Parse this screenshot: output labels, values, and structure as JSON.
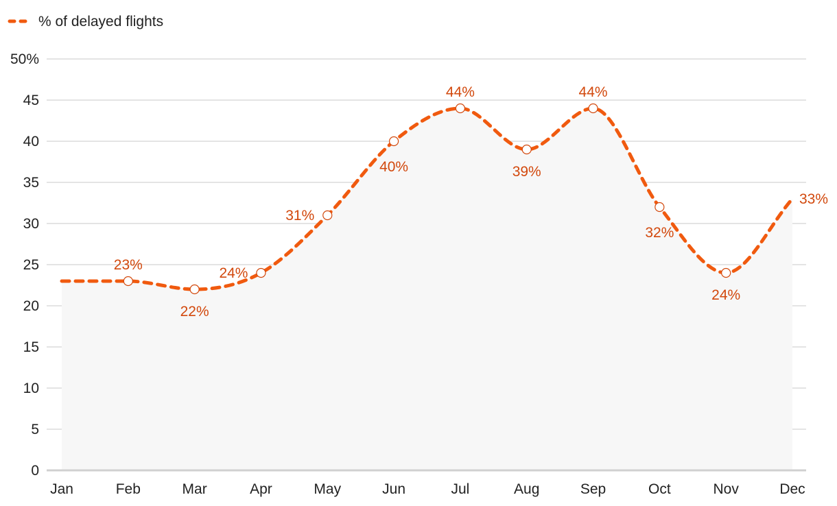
{
  "chart_data": {
    "type": "area",
    "title": "",
    "xlabel": "",
    "ylabel": "",
    "categories": [
      "Jan",
      "Feb",
      "Mar",
      "Apr",
      "May",
      "Jun",
      "Jul",
      "Aug",
      "Sep",
      "Oct",
      "Nov",
      "Dec"
    ],
    "series": [
      {
        "name": "% of delayed flights",
        "values": [
          23,
          23,
          22,
          24,
          31,
          40,
          44,
          39,
          44,
          32,
          24,
          33
        ],
        "data_labels": [
          "",
          "23%",
          "22%",
          "24%",
          "31%",
          "40%",
          "44%",
          "39%",
          "44%",
          "32%",
          "24%",
          "33%"
        ]
      }
    ],
    "ylim": [
      0,
      50
    ],
    "yticks": [
      0,
      5,
      10,
      15,
      20,
      25,
      30,
      35,
      40,
      45,
      50
    ],
    "ytick_labels": [
      "0",
      "5",
      "10",
      "15",
      "20",
      "25",
      "30",
      "35",
      "40",
      "45",
      "50%"
    ],
    "grid": true,
    "legend_position": "top-left",
    "line_style": "dashed",
    "colors": {
      "line": "#f05a0f",
      "label": "#d2480c",
      "area": "#f7f7f7",
      "grid": "#dcdcdc",
      "axis": "#d0d0d0",
      "text": "#222222"
    }
  }
}
